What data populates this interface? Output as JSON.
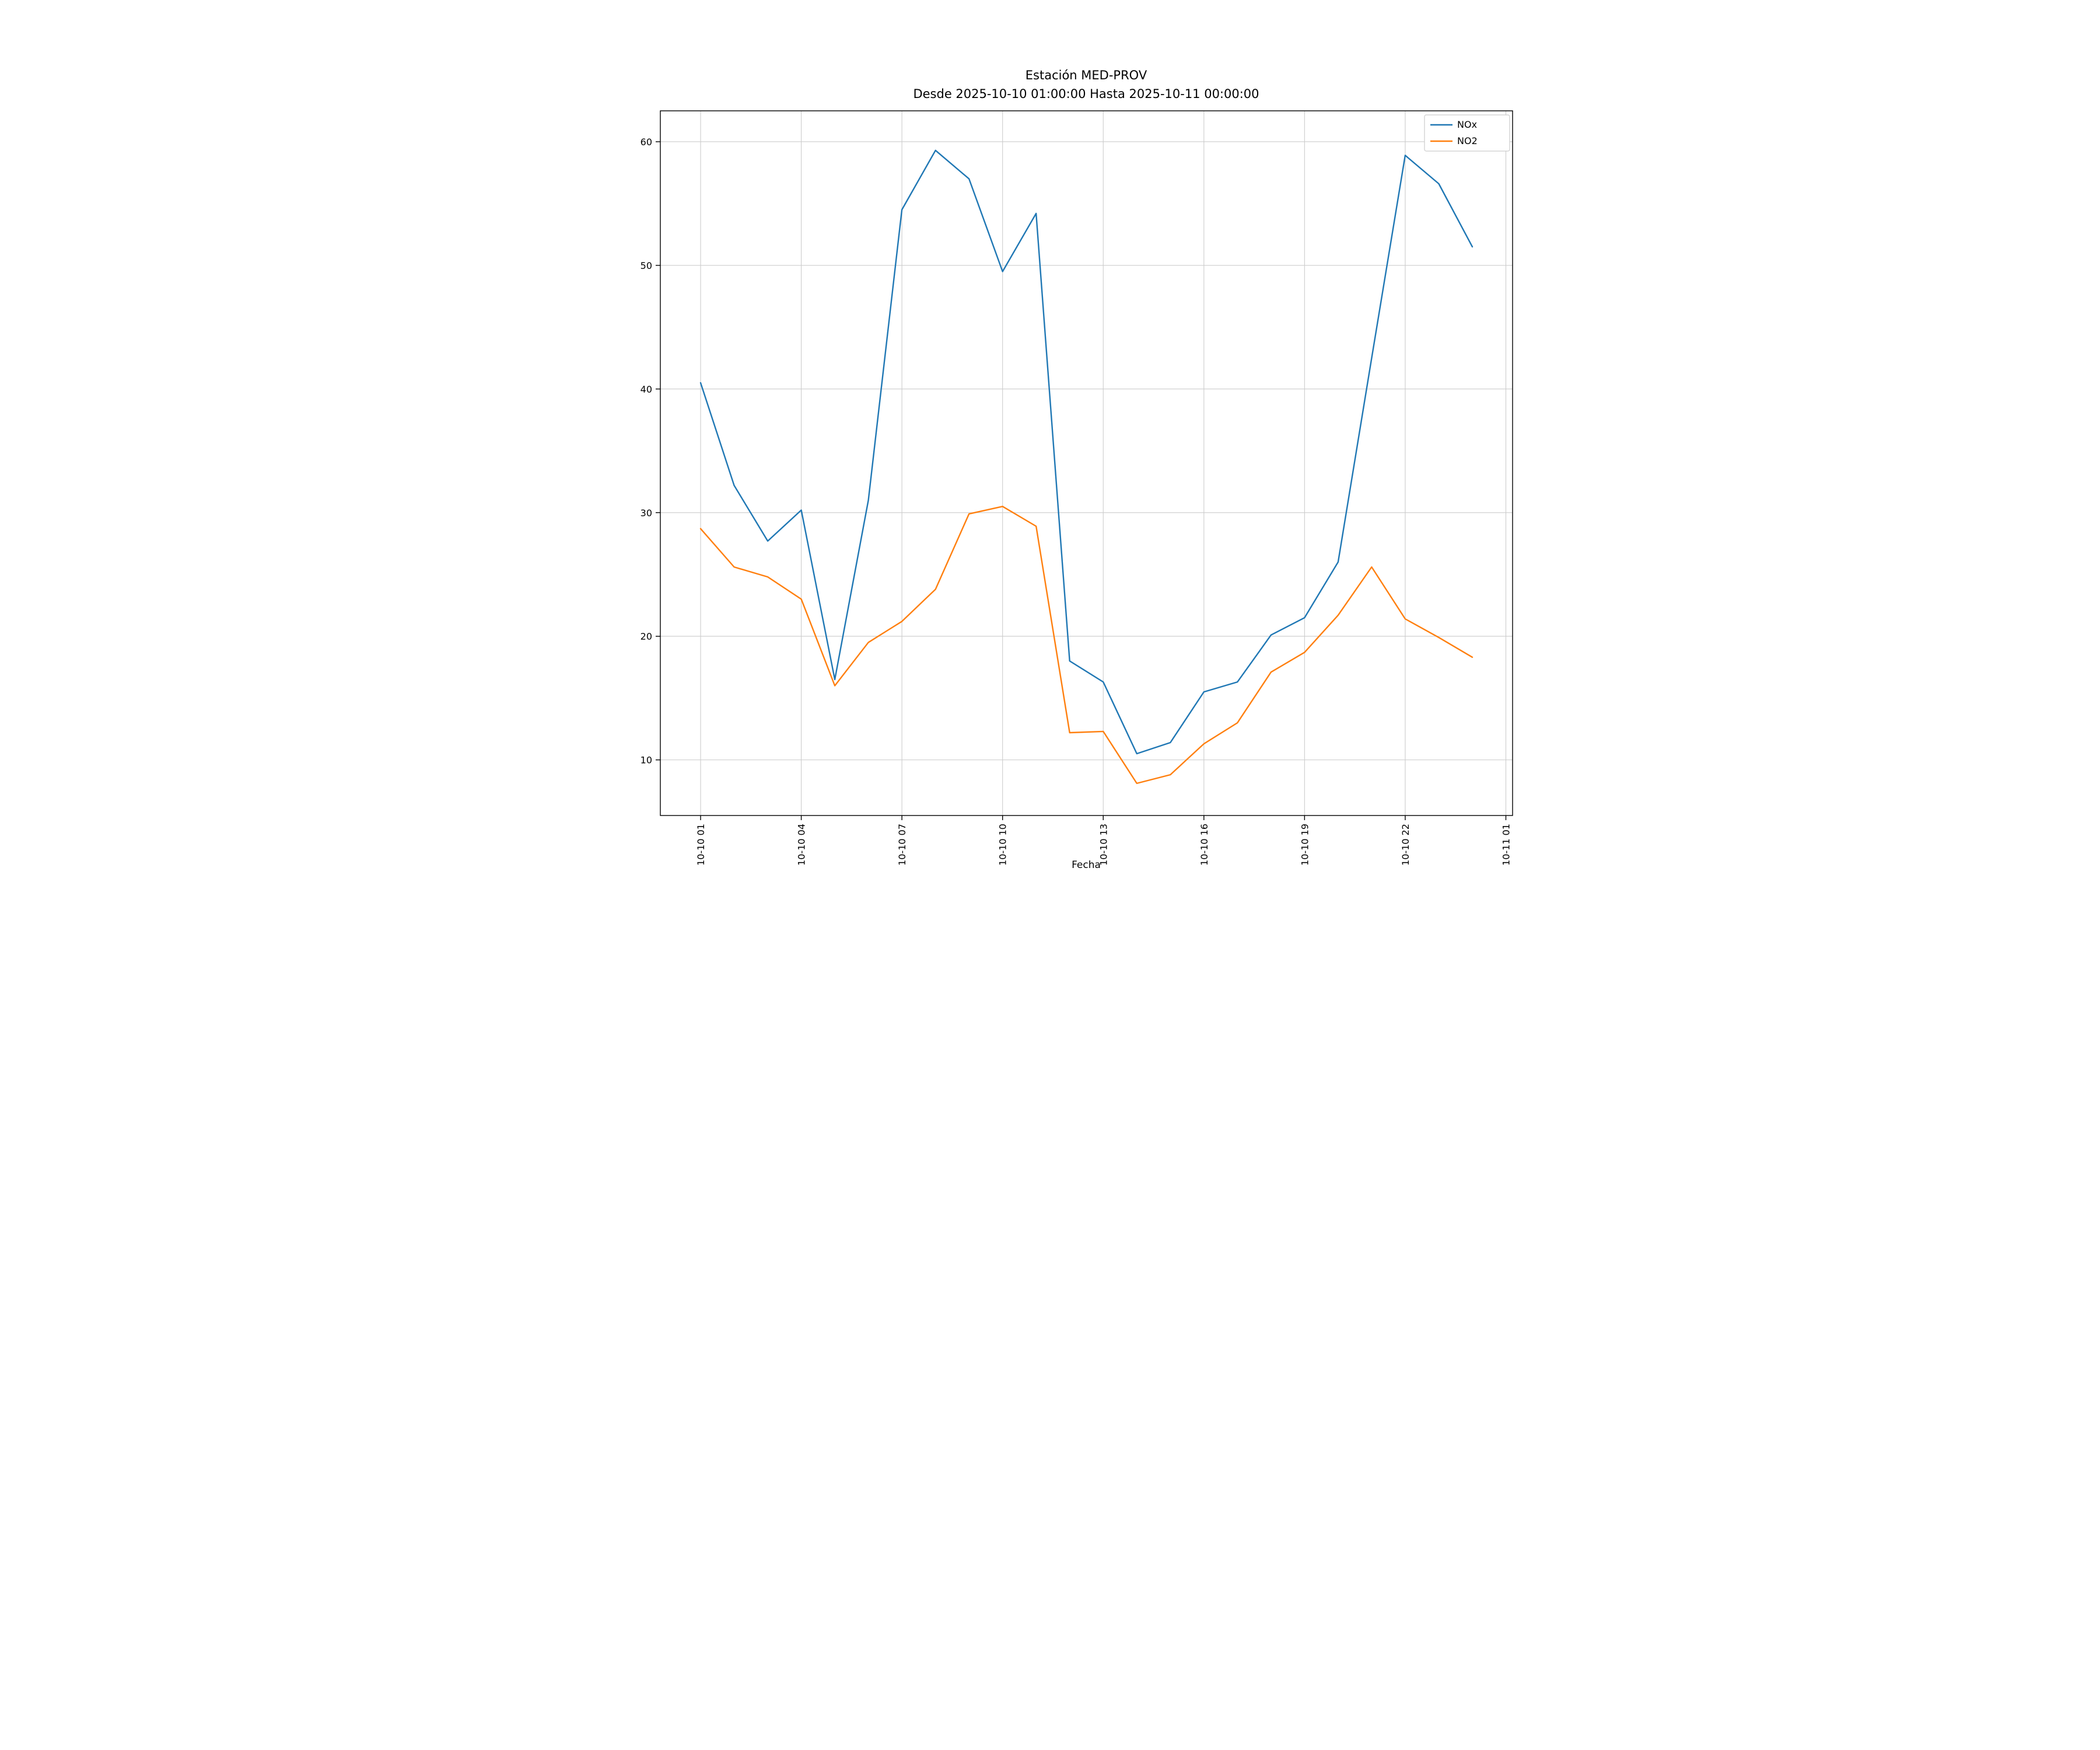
{
  "title": "Estación MED-PROV",
  "subtitle": "Desde 2025-10-10 01:00:00 Hasta 2025-10-11 00:00:00",
  "xlabel": "Fecha",
  "colors": {
    "nox": "#1f77b4",
    "no2": "#ff7f0e",
    "grid": "#cccccc",
    "axis": "#000000",
    "legend_border": "#cccccc",
    "background": "#ffffff"
  },
  "chart_data": {
    "type": "line",
    "title": "Estación MED-PROV",
    "subtitle": "Desde 2025-10-10 01:00:00 Hasta 2025-10-11 00:00:00",
    "xlabel": "Fecha",
    "ylabel": "",
    "grid": true,
    "legend_position": "upper right",
    "xlim": [
      -0.2,
      25.2
    ],
    "ylim": [
      5.5,
      62.5
    ],
    "y_ticks": [
      10,
      20,
      30,
      40,
      50,
      60
    ],
    "x_tick_hours": [
      1,
      4,
      7,
      10,
      13,
      16,
      19,
      22,
      25
    ],
    "x_tick_labels": [
      "10-10 01",
      "10-10 04",
      "10-10 07",
      "10-10 10",
      "10-10 13",
      "10-10 16",
      "10-10 19",
      "10-10 22",
      "10-11 01"
    ],
    "x_hours": [
      1,
      2,
      3,
      4,
      5,
      6,
      7,
      8,
      9,
      10,
      11,
      12,
      13,
      14,
      15,
      16,
      17,
      18,
      19,
      20,
      21,
      22,
      23,
      24
    ],
    "series": [
      {
        "name": "NOx",
        "color": "#1f77b4",
        "values": [
          40.5,
          32.2,
          27.7,
          30.2,
          16.5,
          31.0,
          54.5,
          59.3,
          57.0,
          49.5,
          54.2,
          18.0,
          16.3,
          10.5,
          11.4,
          15.5,
          16.3,
          20.1,
          21.5,
          26.0,
          42.5,
          58.9,
          56.6,
          51.5
        ]
      },
      {
        "name": "NO2",
        "color": "#ff7f0e",
        "values": [
          28.7,
          25.6,
          24.8,
          23.0,
          16.0,
          19.5,
          21.2,
          23.8,
          29.9,
          30.5,
          28.9,
          12.2,
          12.3,
          8.1,
          8.8,
          11.3,
          13.0,
          17.1,
          18.7,
          21.7,
          25.6,
          21.4,
          19.9,
          18.3
        ]
      }
    ]
  }
}
